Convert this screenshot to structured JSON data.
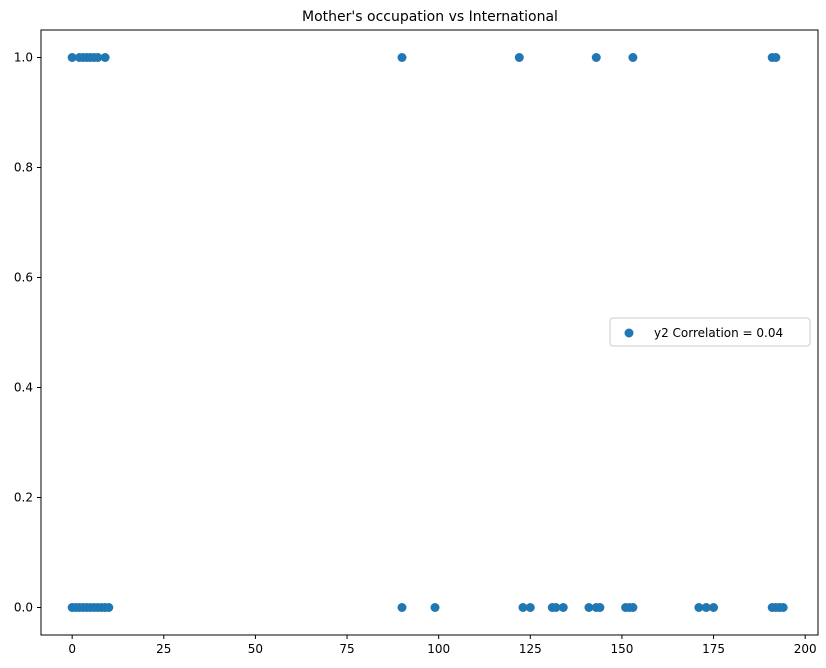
{
  "chart_data": {
    "type": "scatter",
    "title": "Mother's occupation vs International",
    "xlabel": "",
    "ylabel": "",
    "xlim": [
      -8.5,
      203.5
    ],
    "ylim": [
      -0.05,
      1.05
    ],
    "x_ticks": [
      0,
      25,
      50,
      75,
      100,
      125,
      150,
      175,
      200
    ],
    "y_ticks": [
      0.0,
      0.2,
      0.4,
      0.6,
      0.8,
      1.0
    ],
    "x_tick_labels": [
      "0",
      "25",
      "50",
      "75",
      "100",
      "125",
      "150",
      "175",
      "200"
    ],
    "y_tick_labels": [
      "0.0",
      "0.2",
      "0.4",
      "0.6",
      "0.8",
      "1.0"
    ],
    "grid": false,
    "legend_position": "center-right",
    "marker_color": "#1f77b4",
    "series": [
      {
        "name": "y2 Correlation = 0.04",
        "points": [
          [
            0,
            1
          ],
          [
            2,
            1
          ],
          [
            3,
            1
          ],
          [
            4,
            1
          ],
          [
            5,
            1
          ],
          [
            6,
            1
          ],
          [
            7,
            1
          ],
          [
            9,
            1
          ],
          [
            90,
            1
          ],
          [
            122,
            1
          ],
          [
            143,
            1
          ],
          [
            153,
            1
          ],
          [
            191,
            1
          ],
          [
            192,
            1
          ],
          [
            0,
            0
          ],
          [
            1,
            0
          ],
          [
            2,
            0
          ],
          [
            3,
            0
          ],
          [
            4,
            0
          ],
          [
            5,
            0
          ],
          [
            6,
            0
          ],
          [
            7,
            0
          ],
          [
            8,
            0
          ],
          [
            9,
            0
          ],
          [
            10,
            0
          ],
          [
            90,
            0
          ],
          [
            99,
            0
          ],
          [
            123,
            0
          ],
          [
            125,
            0
          ],
          [
            131,
            0
          ],
          [
            132,
            0
          ],
          [
            134,
            0
          ],
          [
            141,
            0
          ],
          [
            143,
            0
          ],
          [
            144,
            0
          ],
          [
            151,
            0
          ],
          [
            152,
            0
          ],
          [
            153,
            0
          ],
          [
            171,
            0
          ],
          [
            173,
            0
          ],
          [
            175,
            0
          ],
          [
            191,
            0
          ],
          [
            192,
            0
          ],
          [
            193,
            0
          ],
          [
            194,
            0
          ]
        ]
      }
    ]
  }
}
